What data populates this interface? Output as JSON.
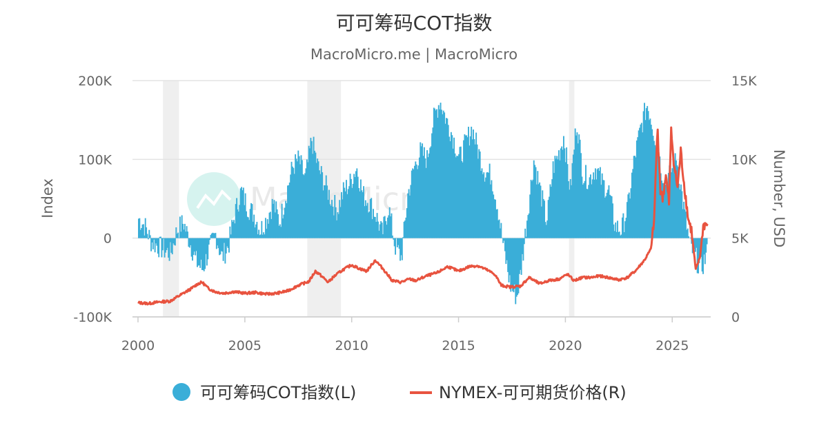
{
  "chart_data": {
    "type": "bar+line",
    "title": "可可筹码COT指数",
    "subtitle": "MacroMicro.me | MacroMicro",
    "watermark": "MacroMicro",
    "colors": {
      "bar": "#3aaed8",
      "line": "#e8533f",
      "recession": "#efefef",
      "grid": "#e3e3e3",
      "watermark_circle": "#d6f3ef"
    },
    "x_axis": {
      "ticks": [
        "2000",
        "2005",
        "2010",
        "2015",
        "2020",
        "2025"
      ],
      "range": [
        "2000-01",
        "2026-10"
      ]
    },
    "y_left": {
      "title": "Index",
      "ticks": [
        "200K",
        "100K",
        "0",
        "-100K"
      ],
      "range": [
        -100000,
        200000
      ]
    },
    "y_right": {
      "title": "Number, USD",
      "ticks": [
        "15K",
        "10K",
        "5K",
        "0"
      ],
      "range": [
        0,
        15000
      ]
    },
    "shaded_periods": [
      {
        "start": 2001.17,
        "end": 2001.92
      },
      {
        "start": 2007.92,
        "end": 2009.5
      },
      {
        "start": 2020.17,
        "end": 2020.42
      }
    ],
    "legend": [
      {
        "label": "可可筹码COT指数(L)",
        "symbol": "circle"
      },
      {
        "label": "NYMEX-可可期货价格(R)",
        "symbol": "line"
      }
    ],
    "series": [
      {
        "name": "可可筹码COT指数(L)",
        "axis": "left",
        "kind": "bar",
        "points": [
          [
            2000.0,
            25000
          ],
          [
            2000.3,
            15000
          ],
          [
            2000.6,
            -5000
          ],
          [
            2000.9,
            -10000
          ],
          [
            2001.2,
            -15000
          ],
          [
            2001.5,
            -20000
          ],
          [
            2001.8,
            10000
          ],
          [
            2002.1,
            20000
          ],
          [
            2002.4,
            -5000
          ],
          [
            2002.7,
            -30000
          ],
          [
            2003.0,
            -40000
          ],
          [
            2003.3,
            -15000
          ],
          [
            2003.6,
            5000
          ],
          [
            2003.9,
            -25000
          ],
          [
            2004.2,
            -10000
          ],
          [
            2004.5,
            30000
          ],
          [
            2004.8,
            60000
          ],
          [
            2005.1,
            40000
          ],
          [
            2005.4,
            30000
          ],
          [
            2005.7,
            10000
          ],
          [
            2006.0,
            25000
          ],
          [
            2006.3,
            45000
          ],
          [
            2006.6,
            20000
          ],
          [
            2006.9,
            55000
          ],
          [
            2007.2,
            90000
          ],
          [
            2007.5,
            100000
          ],
          [
            2007.8,
            75000
          ],
          [
            2008.1,
            125000
          ],
          [
            2008.4,
            90000
          ],
          [
            2008.7,
            70000
          ],
          [
            2009.0,
            50000
          ],
          [
            2009.3,
            35000
          ],
          [
            2009.6,
            60000
          ],
          [
            2009.9,
            70000
          ],
          [
            2010.2,
            90000
          ],
          [
            2010.5,
            55000
          ],
          [
            2010.8,
            45000
          ],
          [
            2011.1,
            30000
          ],
          [
            2011.4,
            5000
          ],
          [
            2011.7,
            40000
          ],
          [
            2012.0,
            -10000
          ],
          [
            2012.3,
            -25000
          ],
          [
            2012.6,
            55000
          ],
          [
            2012.9,
            90000
          ],
          [
            2013.2,
            110000
          ],
          [
            2013.5,
            100000
          ],
          [
            2013.8,
            150000
          ],
          [
            2014.1,
            175000
          ],
          [
            2014.4,
            150000
          ],
          [
            2014.7,
            130000
          ],
          [
            2015.0,
            100000
          ],
          [
            2015.3,
            120000
          ],
          [
            2015.6,
            140000
          ],
          [
            2015.9,
            110000
          ],
          [
            2016.2,
            85000
          ],
          [
            2016.5,
            80000
          ],
          [
            2016.8,
            40000
          ],
          [
            2017.1,
            -15000
          ],
          [
            2017.4,
            -60000
          ],
          [
            2017.7,
            -75000
          ],
          [
            2017.9,
            -40000
          ],
          [
            2018.2,
            30000
          ],
          [
            2018.5,
            100000
          ],
          [
            2018.8,
            60000
          ],
          [
            2019.1,
            20000
          ],
          [
            2019.4,
            90000
          ],
          [
            2019.7,
            110000
          ],
          [
            2019.9,
            130000
          ],
          [
            2020.2,
            60000
          ],
          [
            2020.5,
            150000
          ],
          [
            2020.8,
            80000
          ],
          [
            2021.1,
            75000
          ],
          [
            2021.4,
            90000
          ],
          [
            2021.7,
            70000
          ],
          [
            2022.0,
            60000
          ],
          [
            2022.3,
            15000
          ],
          [
            2022.6,
            10000
          ],
          [
            2022.9,
            40000
          ],
          [
            2023.2,
            100000
          ],
          [
            2023.5,
            140000
          ],
          [
            2023.8,
            170000
          ],
          [
            2024.0,
            150000
          ],
          [
            2024.3,
            110000
          ],
          [
            2024.6,
            70000
          ],
          [
            2024.9,
            85000
          ],
          [
            2025.2,
            100000
          ],
          [
            2025.5,
            40000
          ],
          [
            2025.8,
            -10000
          ],
          [
            2026.0,
            -20000
          ],
          [
            2026.3,
            -40000
          ],
          [
            2026.6,
            -20000
          ]
        ]
      },
      {
        "name": "NYMEX-可可期货价格(R)",
        "axis": "right",
        "kind": "line",
        "points": [
          [
            2000.0,
            900
          ],
          [
            2000.5,
            850
          ],
          [
            2001.0,
            950
          ],
          [
            2001.5,
            1000
          ],
          [
            2002.0,
            1400
          ],
          [
            2002.5,
            1800
          ],
          [
            2002.8,
            2100
          ],
          [
            2003.0,
            2200
          ],
          [
            2003.3,
            1800
          ],
          [
            2003.6,
            1600
          ],
          [
            2004.0,
            1500
          ],
          [
            2004.5,
            1600
          ],
          [
            2005.0,
            1500
          ],
          [
            2005.5,
            1550
          ],
          [
            2006.0,
            1450
          ],
          [
            2006.5,
            1500
          ],
          [
            2007.0,
            1650
          ],
          [
            2007.5,
            2000
          ],
          [
            2008.0,
            2250
          ],
          [
            2008.3,
            2900
          ],
          [
            2008.5,
            2700
          ],
          [
            2008.9,
            2200
          ],
          [
            2009.2,
            2600
          ],
          [
            2009.6,
            3000
          ],
          [
            2010.0,
            3300
          ],
          [
            2010.3,
            3100
          ],
          [
            2010.7,
            2900
          ],
          [
            2011.1,
            3600
          ],
          [
            2011.5,
            3000
          ],
          [
            2011.9,
            2300
          ],
          [
            2012.3,
            2200
          ],
          [
            2012.7,
            2400
          ],
          [
            2013.0,
            2300
          ],
          [
            2013.5,
            2600
          ],
          [
            2014.0,
            2800
          ],
          [
            2014.5,
            3200
          ],
          [
            2015.0,
            2900
          ],
          [
            2015.5,
            3200
          ],
          [
            2015.9,
            3250
          ],
          [
            2016.3,
            3000
          ],
          [
            2016.7,
            2700
          ],
          [
            2017.0,
            2000
          ],
          [
            2017.4,
            1900
          ],
          [
            2017.9,
            1950
          ],
          [
            2018.3,
            2500
          ],
          [
            2018.8,
            2100
          ],
          [
            2019.2,
            2300
          ],
          [
            2019.7,
            2400
          ],
          [
            2020.1,
            2700
          ],
          [
            2020.4,
            2300
          ],
          [
            2020.8,
            2500
          ],
          [
            2021.2,
            2500
          ],
          [
            2021.6,
            2600
          ],
          [
            2022.0,
            2500
          ],
          [
            2022.5,
            2350
          ],
          [
            2022.9,
            2500
          ],
          [
            2023.3,
            2950
          ],
          [
            2023.7,
            3600
          ],
          [
            2024.0,
            4300
          ],
          [
            2024.15,
            6000
          ],
          [
            2024.25,
            10000
          ],
          [
            2024.32,
            11800
          ],
          [
            2024.45,
            8000
          ],
          [
            2024.55,
            7500
          ],
          [
            2024.7,
            9000
          ],
          [
            2024.85,
            7200
          ],
          [
            2024.95,
            11800
          ],
          [
            2025.1,
            9500
          ],
          [
            2025.25,
            8200
          ],
          [
            2025.4,
            10500
          ],
          [
            2025.55,
            8500
          ],
          [
            2025.75,
            6200
          ],
          [
            2025.9,
            5500
          ],
          [
            2026.1,
            3000
          ],
          [
            2026.3,
            3800
          ],
          [
            2026.45,
            5800
          ],
          [
            2026.65,
            5900
          ]
        ]
      }
    ]
  }
}
